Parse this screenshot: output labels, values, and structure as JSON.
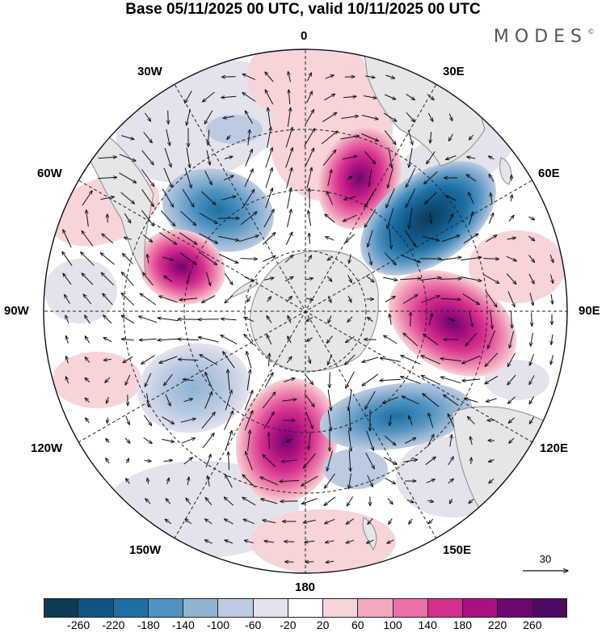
{
  "title": "Base 05/11/2025 00 UTC, valid 10/11/2025 00 UTC",
  "brand": "MODES",
  "brand_mark": "©",
  "longitude_labels": {
    "n0": "0",
    "n30e": "30E",
    "n60e": "60E",
    "n90e": "90E",
    "n120e": "120E",
    "n150e": "150E",
    "n180": "180",
    "n150w": "150W",
    "n120w": "120W",
    "n90w": "90W",
    "n60w": "60W",
    "n30w": "30W"
  },
  "vector_reference": "30",
  "colorbar": {
    "colors": [
      "#0d3b57",
      "#0f5583",
      "#1d6fa5",
      "#4f93c0",
      "#8fb3d3",
      "#bccbe2",
      "#e3e3ee",
      "#ffffff",
      "#f8d3d8",
      "#f3a8bd",
      "#ea70a7",
      "#d6308e",
      "#aa1080",
      "#6c0870",
      "#4c0a62"
    ],
    "ticks": [
      "-260",
      "-220",
      "-180",
      "-140",
      "-100",
      "-60",
      "-20",
      "20",
      "60",
      "100",
      "140",
      "180",
      "220",
      "260"
    ]
  },
  "colors": {
    "land": "#e6e6e6",
    "coast": "#8a8a8a",
    "grid": "#222222"
  }
}
